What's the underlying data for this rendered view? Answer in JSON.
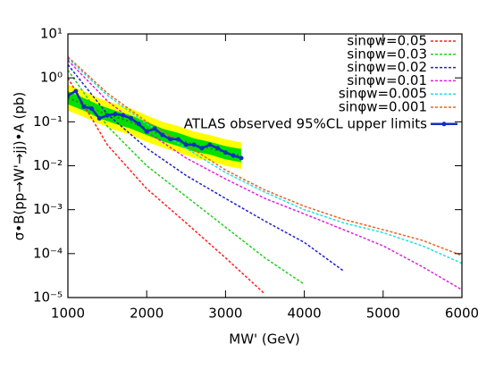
{
  "chart_data": {
    "type": "line",
    "x_label": "MW' (GeV)",
    "y_label": "σ•B(pp→W'→jj)•A (pb)",
    "log_y": true,
    "legend": "upper right",
    "xlim": [
      1000,
      6000
    ],
    "xticks": [
      1000,
      2000,
      3000,
      4000,
      5000,
      6000
    ],
    "ylim": [
      1e-05,
      10
    ],
    "yticks": [
      {
        "value": 1e-05,
        "label": "10⁻⁵"
      },
      {
        "value": 0.0001,
        "label": "10⁻⁴"
      },
      {
        "value": 0.001,
        "label": "10⁻³"
      },
      {
        "value": 0.01,
        "label": "10⁻²"
      },
      {
        "value": 0.1,
        "label": "10⁻¹"
      },
      {
        "value": 1,
        "label": "10⁰"
      },
      {
        "value": 10,
        "label": "10¹"
      }
    ],
    "bands": {
      "x": [
        1000,
        1200,
        1400,
        1600,
        1800,
        2000,
        2200,
        2400,
        2600,
        2800,
        3000,
        3200
      ],
      "expected": [
        0.35,
        0.25,
        0.17,
        0.13,
        0.1,
        0.07,
        0.05,
        0.04,
        0.03,
        0.025,
        0.02,
        0.017
      ],
      "inner_low": [
        0.25,
        0.18,
        0.12,
        0.09,
        0.07,
        0.05,
        0.036,
        0.028,
        0.021,
        0.018,
        0.014,
        0.012
      ],
      "inner_high": [
        0.5,
        0.35,
        0.24,
        0.18,
        0.14,
        0.1,
        0.07,
        0.056,
        0.042,
        0.035,
        0.028,
        0.024
      ],
      "outer_low": [
        0.18,
        0.13,
        0.09,
        0.065,
        0.05,
        0.035,
        0.026,
        0.02,
        0.015,
        0.013,
        0.01,
        0.0085
      ],
      "outer_high": [
        0.7,
        0.5,
        0.34,
        0.26,
        0.2,
        0.14,
        0.1,
        0.08,
        0.06,
        0.05,
        0.04,
        0.034
      ],
      "inner_color": "#00e000",
      "outer_color": "#ffff00",
      "expected_color": "#208020"
    },
    "series": [
      {
        "name": "sinφw=0.05",
        "color": "#ff2020",
        "dashed": true,
        "x": [
          1000,
          1500,
          2000,
          2500,
          3000,
          3500,
          4000,
          4500,
          5000,
          5500,
          6000
        ],
        "values": [
          1.0,
          0.03,
          0.003,
          0.0005,
          8e-05,
          1.2e-05,
          null,
          null,
          null,
          null,
          null
        ]
      },
      {
        "name": "sinφw=0.03",
        "color": "#20d020",
        "dashed": true,
        "x": [
          1000,
          1500,
          2000,
          2500,
          3000,
          3500,
          4000,
          4500,
          5000,
          5500,
          6000
        ],
        "values": [
          1.5,
          0.08,
          0.01,
          0.002,
          0.0004,
          8e-05,
          2e-05,
          null,
          null,
          null,
          null
        ]
      },
      {
        "name": "sinφw=0.02",
        "color": "#2020d0",
        "dashed": true,
        "x": [
          1000,
          1500,
          2000,
          2500,
          3000,
          3500,
          4000,
          4500,
          5000,
          5500,
          6000
        ],
        "values": [
          2.0,
          0.15,
          0.025,
          0.006,
          0.0018,
          0.00055,
          0.00018,
          4e-05,
          null,
          null,
          null
        ]
      },
      {
        "name": "sinφw=0.01",
        "color": "#e020e0",
        "dashed": true,
        "x": [
          1000,
          1500,
          2000,
          2500,
          3000,
          3500,
          4000,
          4500,
          5000,
          5500,
          6000
        ],
        "values": [
          2.5,
          0.3,
          0.06,
          0.015,
          0.005,
          0.0018,
          0.0008,
          0.00035,
          0.00015,
          5e-05,
          1.5e-05
        ]
      },
      {
        "name": "sinφw=0.005",
        "color": "#20e0e0",
        "dashed": true,
        "x": [
          1000,
          1500,
          2000,
          2500,
          3000,
          3500,
          4000,
          4500,
          5000,
          5500,
          6000
        ],
        "values": [
          2.8,
          0.4,
          0.09,
          0.025,
          0.007,
          0.0025,
          0.001,
          0.0005,
          0.0003,
          0.00015,
          6e-05
        ]
      },
      {
        "name": "sinφw=0.001",
        "color": "#f06020",
        "dashed": true,
        "x": [
          1000,
          1500,
          2000,
          2500,
          3000,
          3500,
          4000,
          4500,
          5000,
          5500,
          6000
        ],
        "values": [
          3.0,
          0.45,
          0.1,
          0.03,
          0.008,
          0.0028,
          0.0012,
          0.0006,
          0.00035,
          0.0002,
          9e-05
        ]
      },
      {
        "name": "ATLAS observed 95%CL upper limits",
        "color": "#1030c0",
        "dashed": false,
        "markers": true,
        "x": [
          1000,
          1100,
          1200,
          1300,
          1400,
          1500,
          1600,
          1700,
          1800,
          1900,
          2000,
          2100,
          2200,
          2300,
          2400,
          2500,
          2600,
          2700,
          2800,
          2900,
          3000,
          3100,
          3200
        ],
        "values": [
          0.4,
          0.5,
          0.22,
          0.2,
          0.12,
          0.14,
          0.15,
          0.14,
          0.12,
          0.09,
          0.06,
          0.07,
          0.05,
          0.04,
          0.04,
          0.03,
          0.03,
          0.025,
          0.03,
          0.025,
          0.02,
          0.017,
          0.015
        ]
      }
    ]
  }
}
